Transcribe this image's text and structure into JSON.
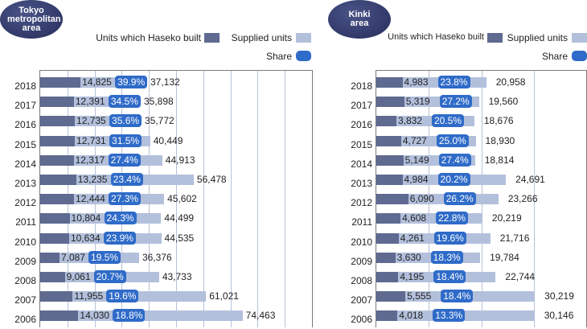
{
  "legend": {
    "haseko": "Units which Haseko built",
    "supplied": "Supplied units",
    "share": "Share"
  },
  "colors": {
    "haseko": "#5f6a91",
    "supplied": "#b3c0dc",
    "share": "#2f6bc8"
  },
  "chart_data": [
    {
      "type": "bar",
      "title": "Tokyo metropolitan area",
      "orientation": "horizontal",
      "xlim": [
        0,
        100000
      ],
      "grid_step": 10000,
      "categories": [
        "2018",
        "2017",
        "2016",
        "2015",
        "2014",
        "2013",
        "2012",
        "2011",
        "2010",
        "2009",
        "2008",
        "2007",
        "2006"
      ],
      "series": [
        {
          "name": "Units which Haseko built",
          "values": [
            14825,
            12391,
            12735,
            12731,
            12317,
            13235,
            12444,
            10804,
            10634,
            7087,
            9061,
            11955,
            14030
          ],
          "labels": [
            "14,825",
            "12,391",
            "12,735",
            "12,731",
            "12,317",
            "13,235",
            "12,444",
            "10,804",
            "10,634",
            "7,087",
            "9,061",
            "11,955",
            "14,030"
          ]
        },
        {
          "name": "Supplied units",
          "values": [
            37132,
            35898,
            35772,
            40449,
            44913,
            56478,
            45602,
            44499,
            44535,
            36376,
            43733,
            61021,
            74463
          ],
          "labels": [
            "37,132",
            "35,898",
            "35,772",
            "40,449",
            "44,913",
            "56,478",
            "45,602",
            "44,499",
            "44,535",
            "36,376",
            "43,733",
            "61,021",
            "74,463"
          ]
        },
        {
          "name": "Share",
          "values": [
            "39.9%",
            "34.5%",
            "35.6%",
            "31.5%",
            "27.4%",
            "23.4%",
            "27.3%",
            "24.3%",
            "23.9%",
            "19.5%",
            "20.7%",
            "19.6%",
            "18.8%"
          ]
        }
      ]
    },
    {
      "type": "bar",
      "title": "Kinki area",
      "orientation": "horizontal",
      "xlim": [
        0,
        40000
      ],
      "grid_step": 10000,
      "categories": [
        "2018",
        "2017",
        "2016",
        "2015",
        "2014",
        "2013",
        "2012",
        "2011",
        "2010",
        "2009",
        "2008",
        "2007",
        "2006"
      ],
      "series": [
        {
          "name": "Units which Haseko built",
          "values": [
            4983,
            5319,
            3832,
            4727,
            5149,
            4984,
            6090,
            4608,
            4261,
            3630,
            4195,
            5555,
            4018
          ],
          "labels": [
            "4,983",
            "5,319",
            "3,832",
            "4,727",
            "5,149",
            "4,984",
            "6,090",
            "4,608",
            "4,261",
            "3,630",
            "4,195",
            "5,555",
            "4,018"
          ]
        },
        {
          "name": "Supplied units",
          "values": [
            20958,
            19560,
            18676,
            18930,
            18814,
            24691,
            23266,
            20219,
            21716,
            19784,
            22744,
            30219,
            30146
          ],
          "labels": [
            "20,958",
            "19,560",
            "18,676",
            "18,930",
            "18,814",
            "24,691",
            "23,266",
            "20,219",
            "21,716",
            "19,784",
            "22,744",
            "30,219",
            "30,146"
          ]
        },
        {
          "name": "Share",
          "values": [
            "23.8%",
            "27.2%",
            "20.5%",
            "25.0%",
            "27.4%",
            "20.2%",
            "26.2%",
            "22.8%",
            "19.6%",
            "18.3%",
            "18.4%",
            "18.4%",
            "13.3%"
          ]
        }
      ]
    }
  ]
}
